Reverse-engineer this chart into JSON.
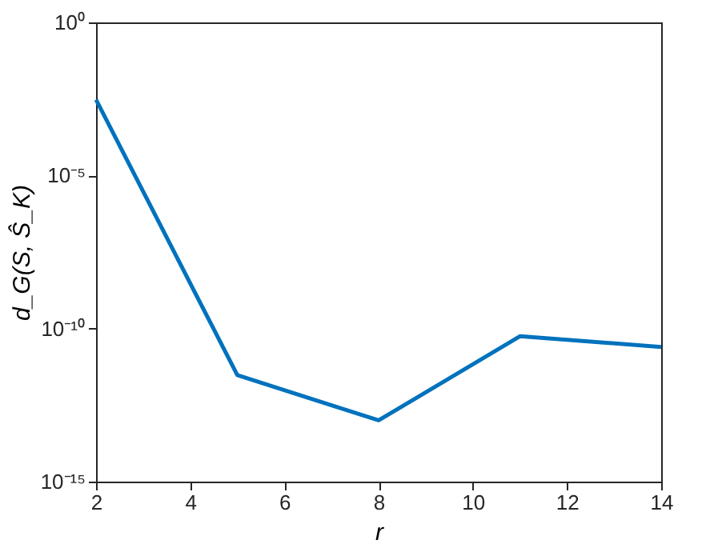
{
  "chart_data": {
    "type": "line",
    "xlabel": "r",
    "ylabel": "d_G(S, Ŝ_K)",
    "x": [
      2,
      5,
      8,
      11,
      14
    ],
    "series": [
      {
        "color": "#0072bd",
        "values": [
          0.003,
          3e-12,
          1e-13,
          5.6e-11,
          2.5e-11
        ]
      }
    ],
    "log": true,
    "xlim": [
      2,
      14
    ],
    "xticks": [
      2,
      4,
      6,
      8,
      10,
      12,
      14
    ],
    "ylim": [
      1e-15,
      1
    ],
    "yticks": [
      {
        "value": 1e-15,
        "label": "10⁻¹⁵"
      },
      {
        "value": 1e-10,
        "label": "10⁻¹⁰"
      },
      {
        "value": 1e-05,
        "label": "10⁻⁵"
      },
      {
        "value": 1,
        "label": "10⁰"
      }
    ],
    "grid": false,
    "marker": "none",
    "line_style": "solid"
  }
}
